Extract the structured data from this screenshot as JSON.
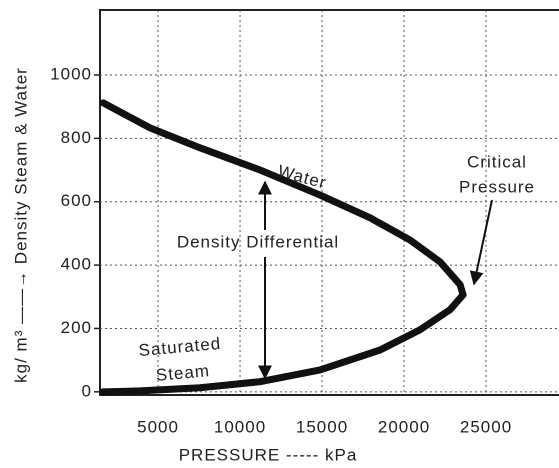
{
  "chart_data": {
    "type": "line",
    "x_label": "PRESSURE ----- kPa",
    "y_label": "kg/ m³ ——→ Density Steam & Water",
    "annotations": [
      "Water",
      "Critical",
      "Pressure",
      "Density Differential",
      "Saturated",
      "Steam"
    ],
    "series": [
      {
        "color": "#111111",
        "x": [
          1650,
          4510,
          7560,
          11220,
          14880,
          17930,
          20370,
          22200,
          23420,
          23600
        ],
        "values": [
          912,
          833,
          770,
          700,
          621,
          549,
          479,
          410,
          338,
          306
        ]
      },
      {
        "color": "#111111",
        "x": [
          23600,
          22800,
          20980,
          18540,
          14880,
          11220,
          7560,
          3900,
          1650
        ],
        "values": [
          306,
          259,
          196,
          132,
          69,
          32,
          13,
          3,
          0
        ]
      }
    ],
    "xlim": [
      1460,
      29450
    ],
    "ylim": [
      -10,
      1205
    ],
    "xticks": [
      5000,
      10000,
      15000,
      20000,
      25000
    ],
    "yticks": [
      0,
      200,
      400,
      600,
      800,
      1000
    ],
    "grid": true
  }
}
